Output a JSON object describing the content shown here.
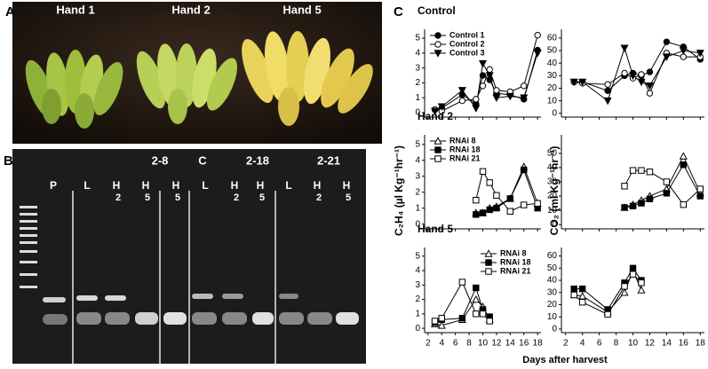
{
  "figure": {
    "panel_a": {
      "label": "A",
      "hands": [
        "Hand 1",
        "Hand 2",
        "Hand 5"
      ]
    },
    "panel_b": {
      "label": "B",
      "groups": [
        "2-8",
        "C",
        "2-18",
        "2-21"
      ],
      "lanes": [
        {
          "top": "P"
        },
        {
          "top": "L"
        },
        {
          "top": "H",
          "sub": "2"
        },
        {
          "top": "H",
          "sub": "5"
        },
        {
          "top": "H",
          "sub": "5"
        },
        {
          "top": "L"
        },
        {
          "top": "H",
          "sub": "2"
        },
        {
          "top": "H",
          "sub": "5"
        },
        {
          "top": "L"
        },
        {
          "top": "H",
          "sub": "2"
        },
        {
          "top": "H",
          "sub": "5"
        }
      ]
    },
    "panel_c": {
      "label": "C",
      "y_label_left": "C₂H₄ (µl Kg⁻¹hr⁻¹)",
      "y_label_right": "CO₂ (ml Kg⁻¹hr⁻¹)",
      "x_label": "Days after harvest"
    }
  },
  "chart_data": [
    {
      "type": "line",
      "title": "Control",
      "legend": "upper left",
      "x": [
        3,
        4,
        7,
        9,
        10,
        11,
        12,
        14,
        16,
        18
      ],
      "xlim": [
        1.5,
        18.5
      ],
      "xticks": [
        2,
        4,
        6,
        8,
        10,
        12,
        14,
        16,
        18
      ],
      "show_xtick_labels": false,
      "ylim": [
        -0.3,
        5.6
      ],
      "yticks": [
        0,
        1,
        2,
        3,
        4,
        5
      ],
      "series": [
        {
          "name": "Control 1",
          "marker": "filled-circle",
          "color": "#000000",
          "values": [
            0.2,
            0.3,
            1.2,
            0.6,
            2.5,
            2.2,
            1.3,
            1.2,
            0.9,
            4.2
          ]
        },
        {
          "name": "Control 2",
          "marker": "open-circle",
          "color": "#000000",
          "values": [
            0.2,
            0.1,
            0.8,
            0.9,
            1.8,
            2.9,
            1.5,
            1.4,
            1.8,
            5.2
          ]
        },
        {
          "name": "Control 3",
          "marker": "filled-triangle-down",
          "color": "#000000",
          "values": [
            0.1,
            0.4,
            1.5,
            0.3,
            3.3,
            2.5,
            1.0,
            1.1,
            1.0,
            4.0
          ]
        }
      ]
    },
    {
      "type": "line",
      "x": [
        3,
        4,
        7,
        9,
        10,
        11,
        12,
        14,
        16,
        18
      ],
      "xlim": [
        1.5,
        18.5
      ],
      "xticks": [
        2,
        4,
        6,
        8,
        10,
        12,
        14,
        16,
        18
      ],
      "show_xtick_labels": false,
      "ylim": [
        -3,
        67
      ],
      "yticks": [
        0,
        10,
        20,
        30,
        40,
        50,
        60
      ],
      "series": [
        {
          "marker": "filled-circle",
          "color": "#000000",
          "values": [
            25,
            25,
            18,
            30,
            32,
            30,
            33,
            57,
            53,
            43
          ]
        },
        {
          "marker": "open-circle",
          "color": "#000000",
          "values": [
            25,
            24,
            23,
            32,
            28,
            31,
            16,
            48,
            45,
            45
          ]
        },
        {
          "marker": "filled-triangle-down",
          "color": "#000000",
          "values": [
            25,
            25,
            10,
            52,
            30,
            25,
            22,
            45,
            50,
            48
          ]
        }
      ]
    },
    {
      "type": "line",
      "title": "Hand 2",
      "legend": "upper left",
      "x": [
        3,
        4,
        7,
        9,
        10,
        11,
        12,
        14,
        16,
        18
      ],
      "xlim": [
        1.5,
        18.5
      ],
      "xticks": [
        2,
        4,
        6,
        8,
        10,
        12,
        14,
        16,
        18
      ],
      "show_xtick_labels": false,
      "ylim": [
        -0.3,
        5.6
      ],
      "yticks": [
        0,
        1,
        2,
        3,
        4,
        5
      ],
      "series": [
        {
          "name": "RNAi 8",
          "marker": "open-triangle",
          "color": "#000000",
          "values": [
            null,
            null,
            null,
            0.7,
            0.7,
            1.0,
            1.1,
            1.6,
            3.6,
            1.3
          ]
        },
        {
          "name": "RNAi 18",
          "marker": "filled-square",
          "color": "#000000",
          "values": [
            null,
            null,
            null,
            0.6,
            0.7,
            0.9,
            1.0,
            1.6,
            3.4,
            1.0
          ]
        },
        {
          "name": "RNAi 21",
          "marker": "open-square",
          "color": "#000000",
          "values": [
            null,
            null,
            null,
            1.5,
            3.3,
            2.6,
            1.8,
            0.8,
            1.2,
            1.3
          ]
        }
      ]
    },
    {
      "type": "line",
      "x": [
        3,
        4,
        7,
        9,
        10,
        11,
        12,
        14,
        16,
        18
      ],
      "xlim": [
        1.5,
        18.5
      ],
      "xticks": [
        2,
        4,
        6,
        8,
        10,
        12,
        14,
        16,
        18
      ],
      "show_xtick_labels": false,
      "ylim": [
        -3,
        63
      ],
      "yticks": [
        0,
        10,
        20,
        30,
        40,
        50
      ],
      "series": [
        {
          "marker": "open-triangle",
          "color": "#000000",
          "values": [
            null,
            null,
            null,
            12,
            14,
            17,
            20,
            25,
            48,
            22
          ]
        },
        {
          "marker": "filled-square",
          "color": "#000000",
          "values": [
            null,
            null,
            null,
            12,
            13,
            15,
            18,
            22,
            42,
            20
          ]
        },
        {
          "marker": "open-square",
          "color": "#000000",
          "values": [
            null,
            null,
            null,
            27,
            38,
            38,
            37,
            30,
            14,
            25
          ]
        }
      ]
    },
    {
      "type": "line",
      "title": "Hand 5",
      "legend": "upper right",
      "x": [
        3,
        4,
        7,
        9,
        10,
        11,
        12,
        14,
        16,
        18
      ],
      "xlim": [
        1.5,
        18.5
      ],
      "xticks": [
        2,
        4,
        6,
        8,
        10,
        12,
        14,
        16,
        18
      ],
      "show_xtick_labels": true,
      "ylim": [
        -0.3,
        5.6
      ],
      "yticks": [
        0,
        1,
        2,
        3,
        4,
        5
      ],
      "series": [
        {
          "name": "RNAi 8",
          "marker": "open-triangle",
          "color": "#000000",
          "values": [
            0.3,
            0.2,
            0.6,
            2.0,
            1.5,
            0.6,
            null,
            null,
            null,
            null
          ]
        },
        {
          "name": "RNAi 18",
          "marker": "filled-square",
          "color": "#000000",
          "values": [
            0.4,
            0.6,
            0.7,
            2.8,
            1.3,
            0.8,
            null,
            null,
            null,
            null
          ]
        },
        {
          "name": "RNAi 21",
          "marker": "open-square",
          "color": "#000000",
          "values": [
            0.5,
            0.7,
            3.2,
            1.0,
            1.0,
            0.5,
            null,
            null,
            null,
            null
          ]
        }
      ]
    },
    {
      "type": "line",
      "x": [
        3,
        4,
        7,
        9,
        10,
        11,
        12,
        14,
        16,
        18
      ],
      "xlim": [
        1.5,
        18.5
      ],
      "xticks": [
        2,
        4,
        6,
        8,
        10,
        12,
        14,
        16,
        18
      ],
      "show_xtick_labels": true,
      "ylim": [
        -3,
        67
      ],
      "yticks": [
        0,
        10,
        20,
        30,
        40,
        50,
        60
      ],
      "series": [
        {
          "marker": "open-triangle",
          "color": "#000000",
          "values": [
            28,
            27,
            14,
            30,
            48,
            32,
            null,
            null,
            null,
            null
          ]
        },
        {
          "marker": "filled-square",
          "color": "#000000",
          "values": [
            33,
            33,
            16,
            38,
            50,
            40,
            null,
            null,
            null,
            null
          ]
        },
        {
          "marker": "open-square",
          "color": "#000000",
          "values": [
            28,
            22,
            12,
            35,
            45,
            38,
            null,
            null,
            null,
            null
          ]
        }
      ]
    }
  ]
}
